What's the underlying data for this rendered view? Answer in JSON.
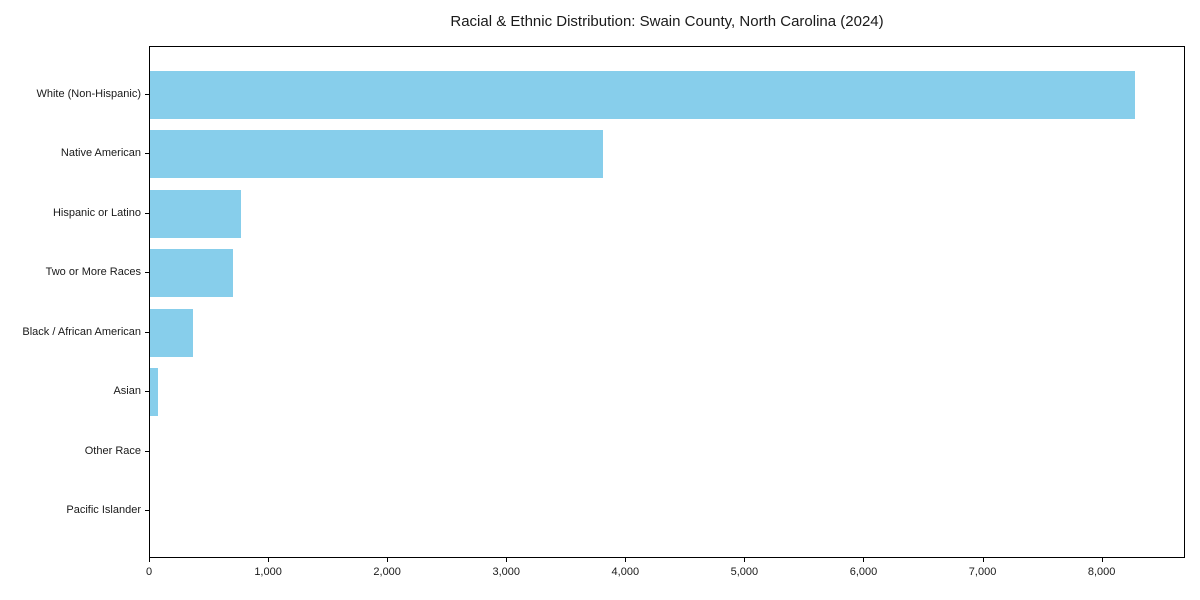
{
  "figure": {
    "background": "#ffffff",
    "text_color": "#1a1a1a",
    "spine_color": "#000000"
  },
  "chart_data": {
    "type": "bar",
    "orientation": "horizontal",
    "title": "Racial & Ethnic Distribution: Swain County, North Carolina (2024)",
    "categories": [
      "White (Non-Hispanic)",
      "Native American",
      "Hispanic or Latino",
      "Two or More Races",
      "Black / African American",
      "Asian",
      "Other Race",
      "Pacific Islander"
    ],
    "values": [
      8285,
      3815,
      765,
      695,
      365,
      70,
      0,
      0
    ],
    "bar_color": "#87CEEB",
    "xlabel": "",
    "ylabel": "",
    "xlim": [
      0,
      8700
    ],
    "xticks": [
      0,
      1000,
      2000,
      3000,
      4000,
      5000,
      6000,
      7000,
      8000
    ],
    "xtick_labels": [
      "0",
      "1,000",
      "2,000",
      "3,000",
      "4,000",
      "5,000",
      "6,000",
      "7,000",
      "8,000"
    ],
    "grid": false,
    "legend": "none"
  }
}
